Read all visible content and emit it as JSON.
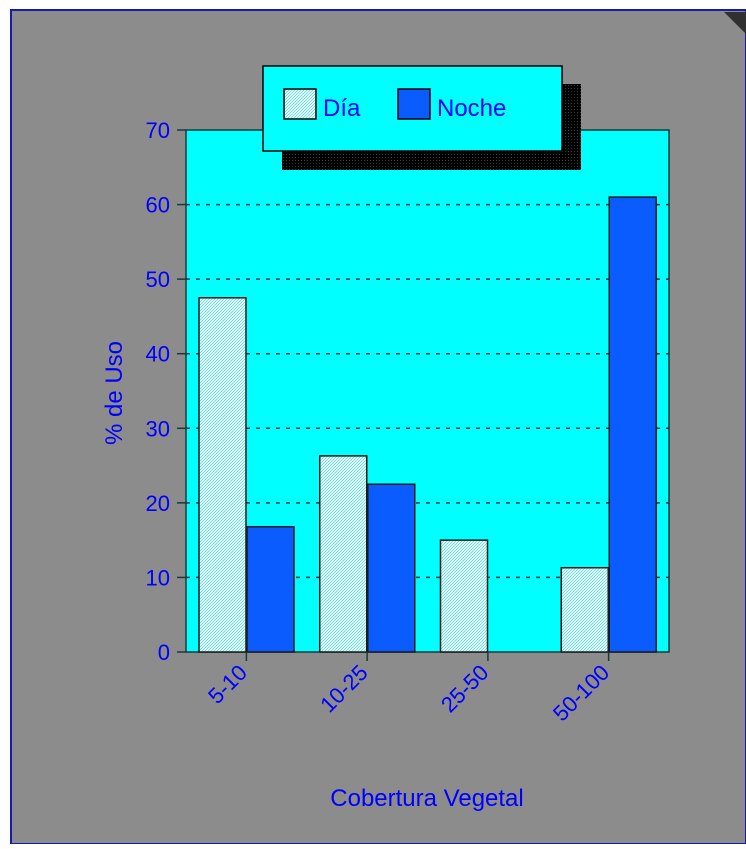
{
  "chart_data": {
    "type": "bar",
    "categories": [
      "5-10",
      "10-25",
      "25-50",
      "50-100"
    ],
    "series": [
      {
        "name": "Día",
        "values": [
          47.5,
          26.3,
          15.0,
          11.3
        ]
      },
      {
        "name": "Noche",
        "values": [
          16.8,
          22.5,
          0,
          61.0
        ]
      }
    ],
    "title": "",
    "xlabel": "Cobertura Vegetal",
    "ylabel": "% de Uso",
    "ylim": [
      0,
      70
    ],
    "yticks": [
      0,
      10,
      20,
      30,
      40,
      50,
      60,
      70
    ],
    "grid": true,
    "legend_position": "top"
  },
  "colors": {
    "background": "#8c8c8c",
    "plot_area": "#00ffff",
    "text": "#0000ff",
    "series_day": "#bff2f2",
    "series_night": "#0a5cff",
    "legend_bg": "#00ffff",
    "frame_border": "#1a1aa8"
  }
}
